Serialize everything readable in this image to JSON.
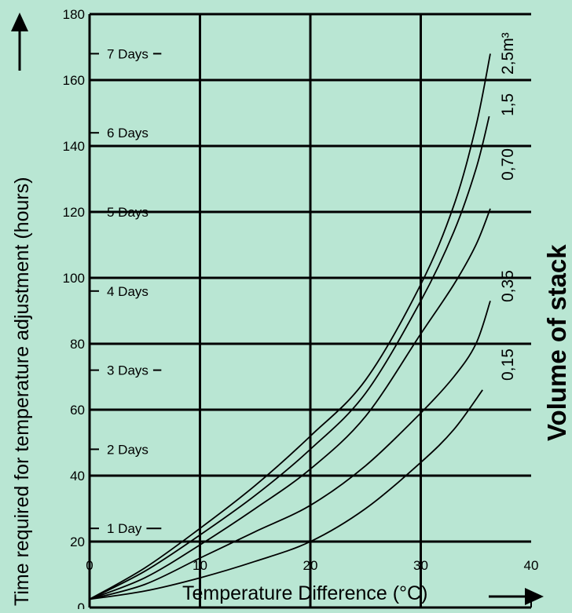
{
  "colors": {
    "background": "#b9e6d3",
    "plot_background": "#b9e6d3",
    "lines": "#000000"
  },
  "chart_data": {
    "type": "line",
    "title": "",
    "xlabel": "Temperature Difference (°C)",
    "ylabel": "Time required for temperature adjustment (hours)",
    "legend_title": "Volume of stack",
    "xlim": [
      0,
      40
    ],
    "ylim": [
      0,
      180
    ],
    "xticks": [
      0,
      10,
      20,
      30,
      40
    ],
    "yticks": [
      0,
      20,
      40,
      60,
      80,
      100,
      120,
      140,
      160,
      180
    ],
    "grid": true,
    "day_markers": [
      {
        "label": "1 Day",
        "hours": 24
      },
      {
        "label": "2 Days",
        "hours": 48
      },
      {
        "label": "3 Days",
        "hours": 72
      },
      {
        "label": "4 Days",
        "hours": 96
      },
      {
        "label": "5 Days",
        "hours": 120
      },
      {
        "label": "6 Days",
        "hours": 144
      },
      {
        "label": "7 Days",
        "hours": 168
      }
    ],
    "series": [
      {
        "name": "2,5m³",
        "x": [
          0,
          5,
          10,
          15,
          20,
          25,
          30,
          33,
          35,
          36.3
        ],
        "y": [
          2.5,
          12,
          24,
          37,
          52,
          69,
          98,
          122,
          146,
          168
        ]
      },
      {
        "name": "1,5",
        "x": [
          0,
          5,
          10,
          15,
          20,
          25,
          30,
          33,
          35,
          36.2
        ],
        "y": [
          2.5,
          11,
          22,
          34,
          48,
          65,
          93,
          114,
          133,
          149
        ]
      },
      {
        "name": "0,70",
        "x": [
          0,
          5,
          10,
          15,
          20,
          25,
          30,
          33,
          35,
          36.3
        ],
        "y": [
          2.5,
          9,
          19,
          30,
          42,
          58,
          83,
          98,
          110,
          121
        ]
      },
      {
        "name": "0,35",
        "x": [
          0,
          5,
          10,
          15,
          20,
          25,
          30,
          33,
          35,
          36.3
        ],
        "y": [
          2.5,
          7,
          15,
          23,
          31,
          43,
          59,
          70,
          80,
          93
        ]
      },
      {
        "name": "0,15",
        "x": [
          0,
          5,
          10,
          15,
          20,
          25,
          30,
          33,
          35.6
        ],
        "y": [
          2.5,
          5,
          9,
          14,
          20,
          30,
          44,
          54,
          66
        ]
      }
    ]
  }
}
